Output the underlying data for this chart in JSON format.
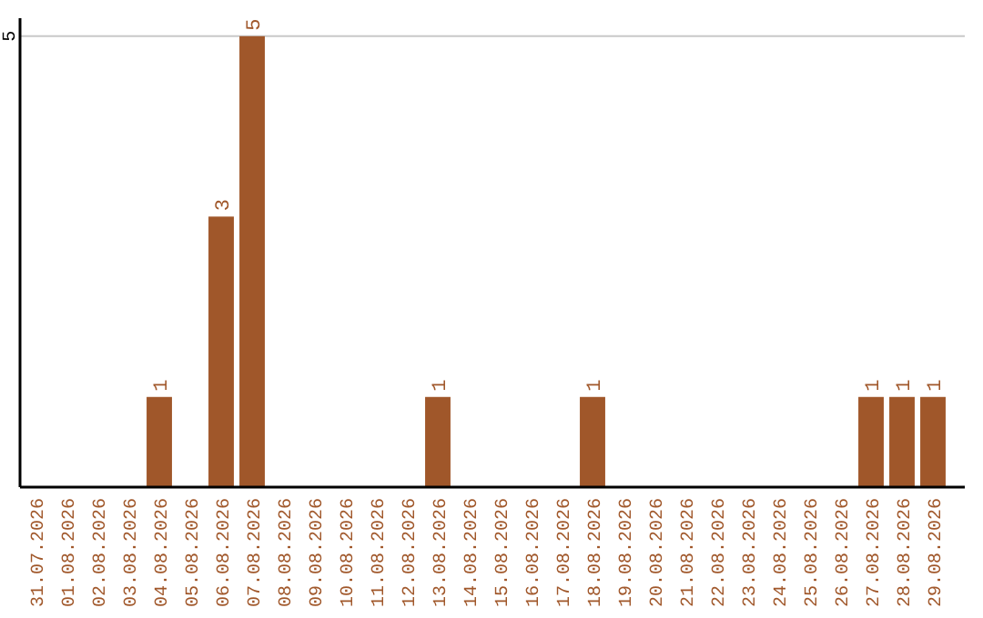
{
  "chart_data": {
    "type": "bar",
    "categories": [
      "31.07.2026",
      "01.08.2026",
      "02.08.2026",
      "03.08.2026",
      "04.08.2026",
      "05.08.2026",
      "06.08.2026",
      "07.08.2026",
      "08.08.2026",
      "09.08.2026",
      "10.08.2026",
      "11.08.2026",
      "12.08.2026",
      "13.08.2026",
      "14.08.2026",
      "15.08.2026",
      "16.08.2026",
      "17.08.2026",
      "18.08.2026",
      "19.08.2026",
      "20.08.2026",
      "21.08.2026",
      "22.08.2026",
      "23.08.2026",
      "24.08.2026",
      "25.08.2026",
      "26.08.2026",
      "27.08.2026",
      "28.08.2026",
      "29.08.2026"
    ],
    "values": [
      0,
      0,
      0,
      0,
      1,
      0,
      3,
      5,
      0,
      0,
      0,
      0,
      0,
      1,
      0,
      0,
      0,
      0,
      1,
      0,
      0,
      0,
      0,
      0,
      0,
      0,
      0,
      1,
      1,
      1
    ],
    "value_labels": [
      null,
      null,
      null,
      null,
      "1",
      null,
      "3",
      "5",
      null,
      null,
      null,
      null,
      null,
      "1",
      null,
      null,
      null,
      null,
      "1",
      null,
      null,
      null,
      null,
      null,
      null,
      null,
      null,
      "1",
      "1",
      "1"
    ],
    "color": "#a0572a",
    "ylim": [
      0,
      5.2
    ],
    "yticks": [
      5
    ],
    "grid": "y"
  }
}
